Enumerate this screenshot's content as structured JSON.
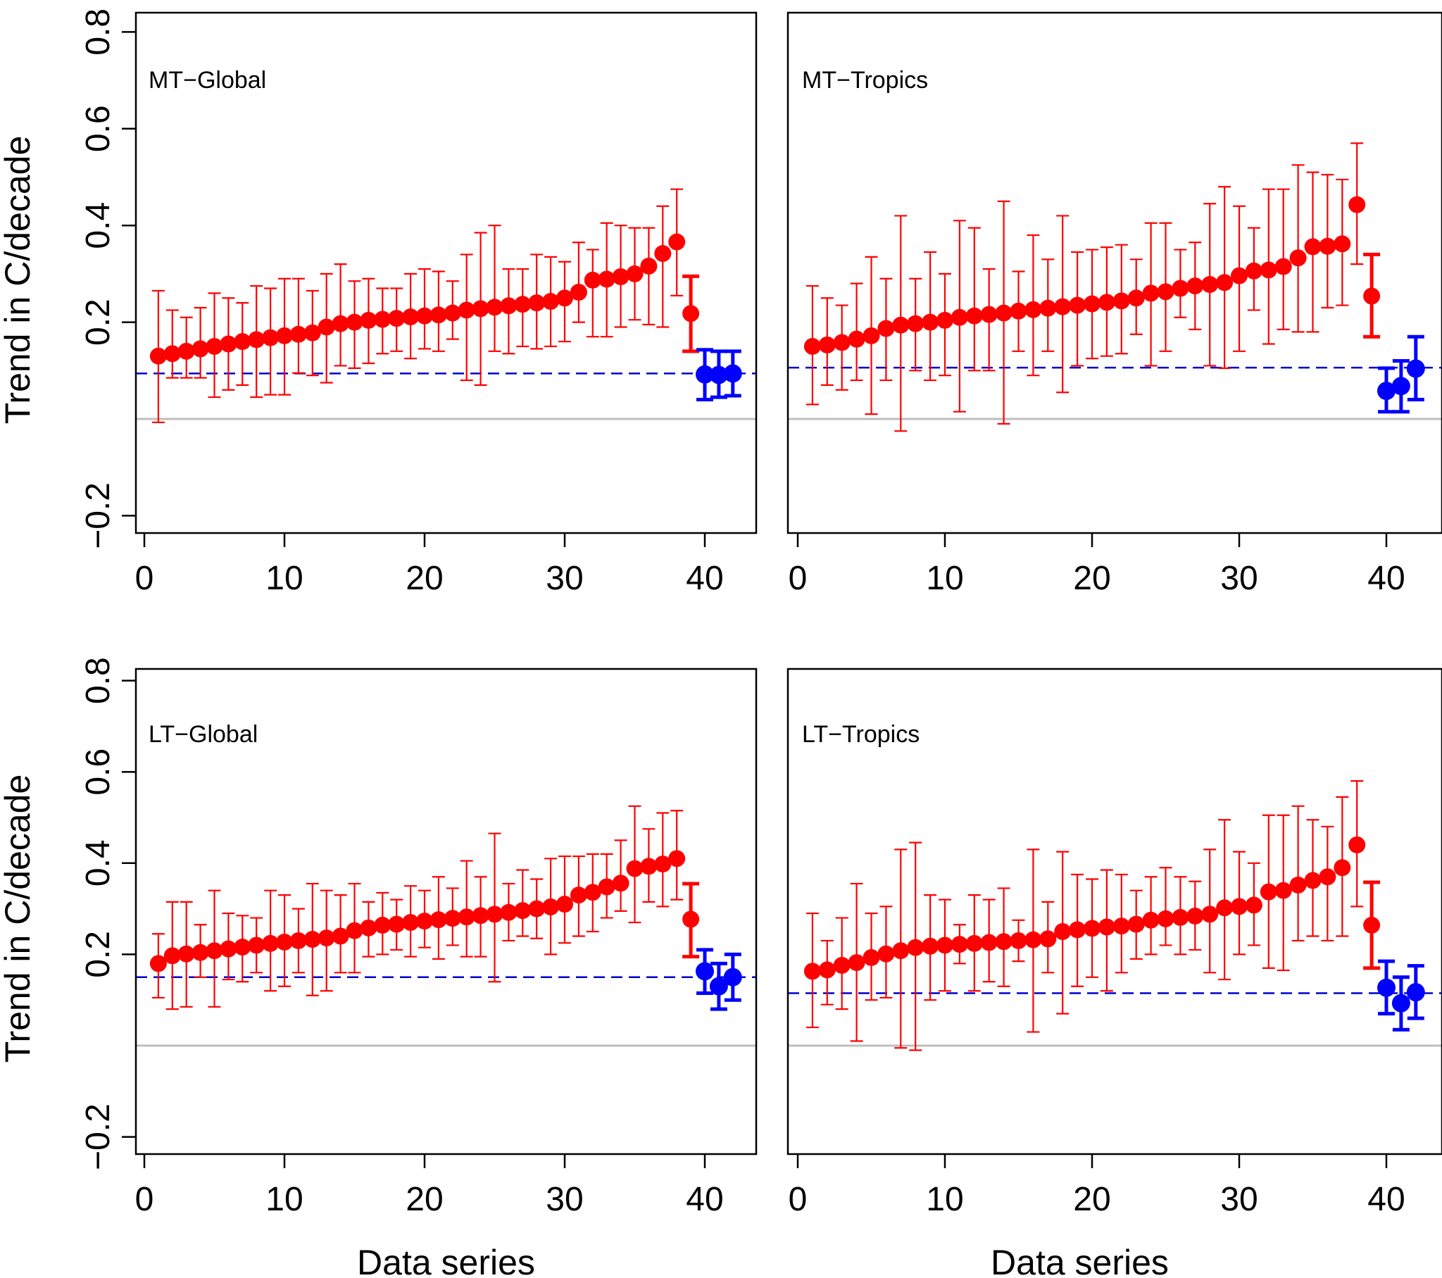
{
  "colors": {
    "model": "#ff0000",
    "observation": "#0000ff",
    "obs_mean_line": "#0000cd",
    "zero_line": "#bebebe",
    "frame": "#000000"
  },
  "chart_data": [
    {
      "type": "scatter",
      "panel_label": "MT−Global",
      "xlabel": "Data series",
      "ylabel": "Trend in C/decade",
      "xlim": [
        0,
        43
      ],
      "ylim": [
        -0.22,
        0.82
      ],
      "x_ticks": [
        0,
        10,
        20,
        30,
        40
      ],
      "x_tick_labels": [
        "0",
        "10",
        "20",
        "30",
        "40"
      ],
      "y_ticks": [
        -0.2,
        0.2,
        0.4,
        0.6,
        0.8
      ],
      "y_tick_labels": [
        "−0.2",
        "0.2",
        "0.4",
        "0.6",
        "0.8"
      ],
      "zero_line": 0.0,
      "obs_mean_line": 0.094,
      "grid": false,
      "series": [
        {
          "x": [
            1,
            2,
            3,
            4,
            5,
            6,
            7,
            8,
            9,
            10,
            11,
            12,
            13,
            14,
            15,
            16,
            17,
            18,
            19,
            20,
            21,
            22,
            23,
            24,
            25,
            26,
            27,
            28,
            29,
            30,
            31,
            32,
            33,
            34,
            35,
            36,
            37,
            38
          ],
          "y": [
            0.13,
            0.135,
            0.14,
            0.145,
            0.15,
            0.155,
            0.16,
            0.164,
            0.168,
            0.172,
            0.175,
            0.178,
            0.19,
            0.197,
            0.2,
            0.204,
            0.206,
            0.208,
            0.211,
            0.213,
            0.215,
            0.219,
            0.225,
            0.228,
            0.231,
            0.234,
            0.237,
            0.24,
            0.243,
            0.25,
            0.262,
            0.287,
            0.289,
            0.294,
            0.3,
            0.316,
            0.342,
            0.366
          ],
          "lower": [
            -0.007,
            0.085,
            0.085,
            0.085,
            0.045,
            0.06,
            0.07,
            0.045,
            0.05,
            0.05,
            0.095,
            0.09,
            0.075,
            0.11,
            0.105,
            0.115,
            0.135,
            0.14,
            0.125,
            0.145,
            0.14,
            0.165,
            0.08,
            0.07,
            0.14,
            0.135,
            0.15,
            0.145,
            0.15,
            0.16,
            0.2,
            0.17,
            0.17,
            0.19,
            0.205,
            0.195,
            0.19,
            0.255
          ],
          "upper": [
            0.265,
            0.225,
            0.21,
            0.23,
            0.26,
            0.25,
            0.24,
            0.275,
            0.27,
            0.29,
            0.29,
            0.265,
            0.3,
            0.32,
            0.285,
            0.29,
            0.27,
            0.27,
            0.3,
            0.31,
            0.305,
            0.285,
            0.34,
            0.385,
            0.4,
            0.31,
            0.31,
            0.34,
            0.335,
            0.325,
            0.365,
            0.35,
            0.405,
            0.4,
            0.395,
            0.395,
            0.44,
            0.475
          ]
        },
        {
          "x": [
            39
          ],
          "y": [
            0.218
          ],
          "lower": [
            0.14
          ],
          "upper": [
            0.295
          ]
        },
        {
          "x": [
            40,
            41,
            42
          ],
          "y": [
            0.092,
            0.091,
            0.094
          ],
          "lower": [
            0.04,
            0.045,
            0.048
          ],
          "upper": [
            0.143,
            0.14,
            0.14
          ]
        }
      ]
    },
    {
      "type": "scatter",
      "panel_label": "MT−Tropics",
      "xlabel": "Data series",
      "ylabel": "",
      "xlim": [
        -0.6,
        43
      ],
      "ylim": [
        -0.22,
        0.82
      ],
      "x_ticks": [
        0,
        10,
        20,
        30,
        40
      ],
      "x_tick_labels": [
        "0",
        "10",
        "20",
        "30",
        "40"
      ],
      "y_ticks": [],
      "y_tick_labels": [],
      "zero_line": 0.0,
      "obs_mean_line": 0.106,
      "grid": false,
      "series": [
        {
          "x": [
            1,
            2,
            3,
            4,
            5,
            6,
            7,
            8,
            9,
            10,
            11,
            12,
            13,
            14,
            15,
            16,
            17,
            18,
            19,
            20,
            21,
            22,
            23,
            24,
            25,
            26,
            27,
            28,
            29,
            30,
            31,
            32,
            33,
            34,
            35,
            36,
            37
          ],
          "y": [
            0.15,
            0.153,
            0.158,
            0.165,
            0.172,
            0.187,
            0.194,
            0.197,
            0.2,
            0.204,
            0.21,
            0.213,
            0.216,
            0.219,
            0.223,
            0.226,
            0.229,
            0.232,
            0.235,
            0.238,
            0.241,
            0.244,
            0.25,
            0.26,
            0.263,
            0.27,
            0.275,
            0.278,
            0.282,
            0.296,
            0.306,
            0.308,
            0.315,
            0.333,
            0.356,
            0.357,
            0.362
          ],
          "lower": [
            0.03,
            0.07,
            0.06,
            0.08,
            0.01,
            0.08,
            -0.025,
            0.1,
            0.08,
            0.09,
            0.015,
            0.1,
            0.1,
            -0.01,
            0.14,
            0.09,
            0.14,
            0.055,
            0.11,
            0.125,
            0.13,
            0.135,
            0.175,
            0.11,
            0.14,
            0.21,
            0.185,
            0.11,
            0.105,
            0.14,
            0.225,
            0.155,
            0.185,
            0.18,
            0.18,
            0.23,
            0.235
          ],
          "upper": [
            0.275,
            0.25,
            0.235,
            0.28,
            0.335,
            0.29,
            0.42,
            0.29,
            0.345,
            0.3,
            0.41,
            0.395,
            0.31,
            0.45,
            0.305,
            0.38,
            0.33,
            0.42,
            0.345,
            0.35,
            0.355,
            0.36,
            0.33,
            0.405,
            0.405,
            0.35,
            0.365,
            0.445,
            0.48,
            0.44,
            0.395,
            0.475,
            0.475,
            0.525,
            0.51,
            0.505,
            0.495
          ]
        },
        {
          "x": [
            38
          ],
          "y": [
            0.443
          ],
          "lower": [
            0.32
          ],
          "upper": [
            0.57
          ]
        },
        {
          "x": [
            39
          ],
          "y": [
            0.254
          ],
          "lower": [
            0.17
          ],
          "upper": [
            0.34
          ]
        },
        {
          "x": [
            40,
            41,
            42
          ],
          "y": [
            0.058,
            0.068,
            0.104
          ],
          "lower": [
            0.015,
            0.015,
            0.04
          ],
          "upper": [
            0.105,
            0.12,
            0.17
          ]
        }
      ]
    },
    {
      "type": "scatter",
      "panel_label": "LT−Global",
      "xlabel": "Data series",
      "ylabel": "Trend in C/decade",
      "xlim": [
        0,
        43
      ],
      "ylim": [
        -0.22,
        0.82
      ],
      "x_ticks": [
        0,
        10,
        20,
        30,
        40
      ],
      "x_tick_labels": [
        "0",
        "10",
        "20",
        "30",
        "40"
      ],
      "y_ticks": [
        -0.2,
        0.2,
        0.4,
        0.6,
        0.8
      ],
      "y_tick_labels": [
        "−0.2",
        "0.2",
        "0.4",
        "0.6",
        "0.8"
      ],
      "zero_line": 0.0,
      "obs_mean_line": 0.15,
      "grid": false,
      "series": [
        {
          "x": [
            1,
            2,
            3,
            4,
            5,
            6,
            7,
            8,
            9,
            10,
            11,
            12,
            13,
            14,
            15,
            16,
            17,
            18,
            19,
            20,
            21,
            22,
            23,
            24,
            25,
            26,
            27,
            28,
            29,
            30,
            31,
            32,
            33,
            34,
            35,
            36,
            37,
            38
          ],
          "y": [
            0.18,
            0.197,
            0.201,
            0.204,
            0.208,
            0.212,
            0.216,
            0.22,
            0.224,
            0.227,
            0.23,
            0.233,
            0.236,
            0.24,
            0.252,
            0.258,
            0.264,
            0.266,
            0.27,
            0.273,
            0.276,
            0.279,
            0.282,
            0.285,
            0.288,
            0.292,
            0.296,
            0.3,
            0.304,
            0.31,
            0.33,
            0.336,
            0.348,
            0.356,
            0.388,
            0.393,
            0.398,
            0.41
          ],
          "lower": [
            0.105,
            0.08,
            0.085,
            0.15,
            0.085,
            0.145,
            0.14,
            0.16,
            0.12,
            0.13,
            0.16,
            0.11,
            0.12,
            0.16,
            0.16,
            0.195,
            0.2,
            0.21,
            0.195,
            0.215,
            0.19,
            0.22,
            0.195,
            0.195,
            0.14,
            0.23,
            0.24,
            0.235,
            0.2,
            0.225,
            0.24,
            0.25,
            0.28,
            0.295,
            0.27,
            0.315,
            0.305,
            0.32
          ],
          "upper": [
            0.245,
            0.315,
            0.315,
            0.265,
            0.34,
            0.29,
            0.285,
            0.28,
            0.34,
            0.33,
            0.3,
            0.355,
            0.34,
            0.33,
            0.355,
            0.315,
            0.335,
            0.32,
            0.35,
            0.34,
            0.37,
            0.345,
            0.405,
            0.37,
            0.465,
            0.355,
            0.385,
            0.365,
            0.41,
            0.415,
            0.415,
            0.42,
            0.42,
            0.45,
            0.525,
            0.475,
            0.51,
            0.515
          ]
        },
        {
          "x": [
            39
          ],
          "y": [
            0.277
          ],
          "lower": [
            0.195
          ],
          "upper": [
            0.355
          ]
        },
        {
          "x": [
            40,
            41,
            42
          ],
          "y": [
            0.163,
            0.13,
            0.15
          ],
          "lower": [
            0.115,
            0.08,
            0.1
          ],
          "upper": [
            0.21,
            0.18,
            0.2
          ]
        }
      ]
    },
    {
      "type": "scatter",
      "panel_label": "LT−Tropics",
      "xlabel": "Data series",
      "ylabel": "",
      "xlim": [
        -0.6,
        43
      ],
      "ylim": [
        -0.22,
        0.82
      ],
      "x_ticks": [
        0,
        10,
        20,
        30,
        40
      ],
      "x_tick_labels": [
        "0",
        "10",
        "20",
        "30",
        "40"
      ],
      "y_ticks": [],
      "y_tick_labels": [],
      "zero_line": 0.0,
      "obs_mean_line": 0.115,
      "grid": false,
      "series": [
        {
          "x": [
            1,
            2,
            3,
            4,
            5,
            6,
            7,
            8,
            9,
            10,
            11,
            12,
            13,
            14,
            15,
            16,
            17,
            18,
            19,
            20,
            21,
            22,
            23,
            24,
            25,
            26,
            27,
            28,
            29,
            30,
            31,
            32,
            33,
            34,
            35,
            36,
            37
          ],
          "y": [
            0.163,
            0.166,
            0.176,
            0.182,
            0.193,
            0.201,
            0.208,
            0.215,
            0.218,
            0.22,
            0.222,
            0.224,
            0.226,
            0.228,
            0.23,
            0.232,
            0.234,
            0.25,
            0.254,
            0.257,
            0.26,
            0.262,
            0.266,
            0.275,
            0.278,
            0.281,
            0.284,
            0.288,
            0.302,
            0.305,
            0.308,
            0.337,
            0.34,
            0.352,
            0.362,
            0.37,
            0.39
          ],
          "lower": [
            0.04,
            0.09,
            0.08,
            0.01,
            0.1,
            0.105,
            -0.005,
            -0.01,
            0.1,
            0.12,
            0.18,
            0.12,
            0.14,
            0.13,
            0.185,
            0.03,
            0.16,
            0.07,
            0.13,
            0.15,
            0.12,
            0.16,
            0.19,
            0.2,
            0.22,
            0.2,
            0.21,
            0.16,
            0.145,
            0.2,
            0.22,
            0.17,
            0.165,
            0.23,
            0.24,
            0.23,
            0.24
          ],
          "upper": [
            0.29,
            0.23,
            0.28,
            0.355,
            0.29,
            0.305,
            0.43,
            0.445,
            0.33,
            0.32,
            0.265,
            0.33,
            0.32,
            0.345,
            0.275,
            0.43,
            0.315,
            0.425,
            0.375,
            0.365,
            0.385,
            0.375,
            0.34,
            0.37,
            0.39,
            0.37,
            0.36,
            0.43,
            0.495,
            0.425,
            0.4,
            0.505,
            0.505,
            0.525,
            0.495,
            0.48,
            0.545
          ]
        },
        {
          "x": [
            38
          ],
          "y": [
            0.44
          ],
          "lower": [
            0.305
          ],
          "upper": [
            0.58
          ]
        },
        {
          "x": [
            39
          ],
          "y": [
            0.264
          ],
          "lower": [
            0.17
          ],
          "upper": [
            0.358
          ]
        },
        {
          "x": [
            40,
            41,
            42
          ],
          "y": [
            0.127,
            0.093,
            0.117
          ],
          "lower": [
            0.07,
            0.035,
            0.06
          ],
          "upper": [
            0.185,
            0.15,
            0.175
          ]
        }
      ]
    }
  ]
}
